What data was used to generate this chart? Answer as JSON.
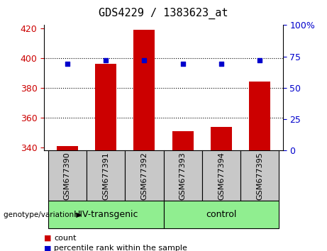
{
  "title": "GDS4229 / 1383623_at",
  "samples": [
    "GSM677390",
    "GSM677391",
    "GSM677392",
    "GSM677393",
    "GSM677394",
    "GSM677395"
  ],
  "count_values": [
    341,
    396,
    419,
    351,
    354,
    384
  ],
  "percentile_values": [
    69,
    72,
    72,
    69,
    69,
    72
  ],
  "ylim_left": [
    338,
    422
  ],
  "ylim_right": [
    0,
    100
  ],
  "yticks_left": [
    340,
    360,
    380,
    400,
    420
  ],
  "yticks_right": [
    0,
    25,
    50,
    75,
    100
  ],
  "ytick_labels_right": [
    "0",
    "25",
    "50",
    "75",
    "100%"
  ],
  "grid_lines": [
    360,
    380,
    400
  ],
  "group_labels": [
    "HIV-transgenic",
    "control"
  ],
  "group_color": "#90EE90",
  "bar_color": "#CC0000",
  "dot_color": "#0000CC",
  "xticklabel_bg": "#C8C8C8",
  "legend_count_label": "count",
  "legend_pct_label": "percentile rank within the sample",
  "left_axis_color": "#CC0000",
  "right_axis_color": "#0000CC",
  "base_count": 338,
  "bar_width": 0.55
}
